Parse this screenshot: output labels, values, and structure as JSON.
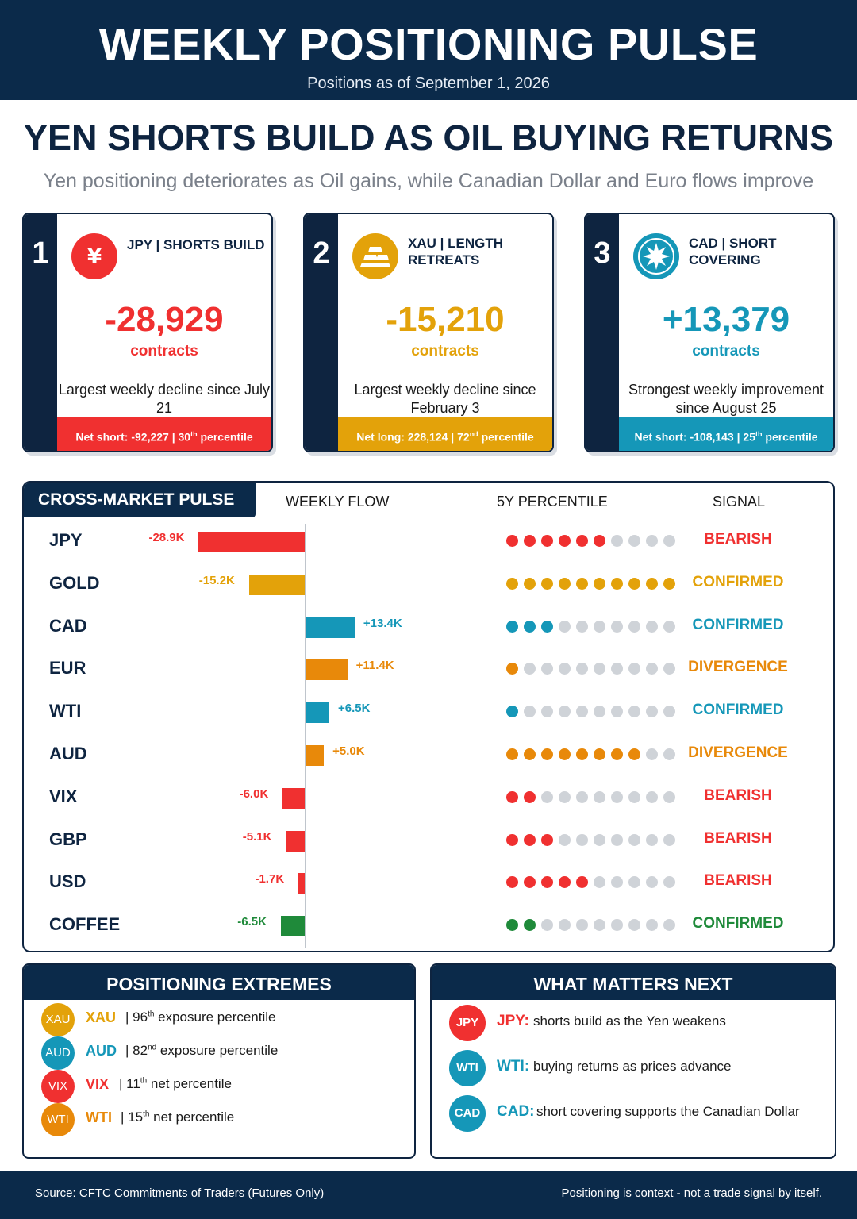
{
  "header": {
    "title": "WEEKLY POSITIONING PULSE",
    "subtitle": "Positions as of September 1, 2026"
  },
  "headline": "YEN SHORTS BUILD AS OIL BUYING RETURNS",
  "subheadline": "Yen positioning deteriorates as Oil gains, while Canadian Dollar and Euro flows improve",
  "cards": [
    {
      "number": "1",
      "label": "JPY | SHORTS BUILD",
      "icon": "yen-icon",
      "icon_glyph": "¥",
      "value": "-28,929",
      "unit": "contracts",
      "description": "Largest weekly decline since July 21",
      "footer_prefix": "Net short: -92,227 | 30",
      "footer_sup": "th",
      "footer_suffix": " percentile",
      "color": "#f03030"
    },
    {
      "number": "2",
      "label": "XAU | LENGTH RETREATS",
      "icon": "gold-bars-icon",
      "value": "-15,210",
      "unit": "contracts",
      "description": "Largest weekly decline since February 3",
      "footer_prefix": "Net long: 228,124 | 72",
      "footer_sup": "nd",
      "footer_suffix": " percentile",
      "color": "#e3a20a"
    },
    {
      "number": "3",
      "label": "CAD | SHORT COVERING",
      "icon": "maple-leaf-icon",
      "value": "+13,379",
      "unit": "contracts",
      "description": "Strongest weekly improvement since August 25",
      "footer_prefix": "Net short: -108,143 | 25",
      "footer_sup": "th",
      "footer_suffix": " percentile",
      "color": "#1597b8"
    }
  ],
  "cross_market": {
    "title": "CROSS-MARKET PULSE",
    "col_flow": "WEEKLY FLOW",
    "col_percentile": "5Y PERCENTILE",
    "col_signal": "SIGNAL",
    "rows": [
      {
        "name": "JPY",
        "flow_k": -28.9,
        "flow_label": "-28.9K",
        "dots": 6,
        "signal": "BEARISH",
        "color": "#f03030"
      },
      {
        "name": "GOLD",
        "flow_k": -15.2,
        "flow_label": "-15.2K",
        "dots": 10,
        "signal": "CONFIRMED",
        "color": "#e3a20a"
      },
      {
        "name": "CAD",
        "flow_k": 13.4,
        "flow_label": "+13.4K",
        "dots": 3,
        "signal": "CONFIRMED",
        "color": "#1597b8"
      },
      {
        "name": "EUR",
        "flow_k": 11.4,
        "flow_label": "+11.4K",
        "dots": 1,
        "signal": "DIVERGENCE",
        "color": "#e8890a"
      },
      {
        "name": "WTI",
        "flow_k": 6.5,
        "flow_label": "+6.5K",
        "dots": 1,
        "signal": "CONFIRMED",
        "color": "#1597b8"
      },
      {
        "name": "AUD",
        "flow_k": 5.0,
        "flow_label": "+5.0K",
        "dots": 8,
        "signal": "DIVERGENCE",
        "color": "#e8890a"
      },
      {
        "name": "VIX",
        "flow_k": -6.0,
        "flow_label": "-6.0K",
        "dots": 2,
        "signal": "BEARISH",
        "color": "#f03030"
      },
      {
        "name": "GBP",
        "flow_k": -5.1,
        "flow_label": "-5.1K",
        "dots": 3,
        "signal": "BEARISH",
        "color": "#f03030"
      },
      {
        "name": "USD",
        "flow_k": -1.7,
        "flow_label": "-1.7K",
        "dots": 5,
        "signal": "BEARISH",
        "color": "#f03030"
      },
      {
        "name": "COFFEE",
        "flow_k": -6.5,
        "flow_label": "-6.5K",
        "dots": 2,
        "signal": "CONFIRMED",
        "color": "#1f8a3a"
      }
    ]
  },
  "extremes": {
    "title": "POSITIONING EXTREMES",
    "items": [
      {
        "code": "XAU",
        "num": "96",
        "sup": "th",
        "rest": " exposure percentile",
        "color": "#e3a20a"
      },
      {
        "code": "AUD",
        "num": "82",
        "sup": "nd",
        "rest": " exposure percentile",
        "color": "#1597b8"
      },
      {
        "code": "VIX",
        "num": "11",
        "sup": "th",
        "rest": " net percentile",
        "color": "#f03030"
      },
      {
        "code": "WTI",
        "num": "15",
        "sup": "th",
        "rest": " net percentile",
        "color": "#e8890a"
      }
    ]
  },
  "next": {
    "title": "WHAT MATTERS NEXT",
    "items": [
      {
        "code": "JPY",
        "label": "JPY:",
        "text": "shorts build as the Yen weakens",
        "color": "#f03030"
      },
      {
        "code": "WTI",
        "label": "WTI:",
        "text": "buying returns as prices advance",
        "color": "#1597b8"
      },
      {
        "code": "CAD",
        "label": "CAD:",
        "text": "short covering supports the Canadian Dollar",
        "color": "#1597b8"
      }
    ]
  },
  "footer": {
    "source": "Source: CFTC Commitments of Traders (Futures Only)",
    "note": "Positioning is context - not a trade signal by itself."
  }
}
